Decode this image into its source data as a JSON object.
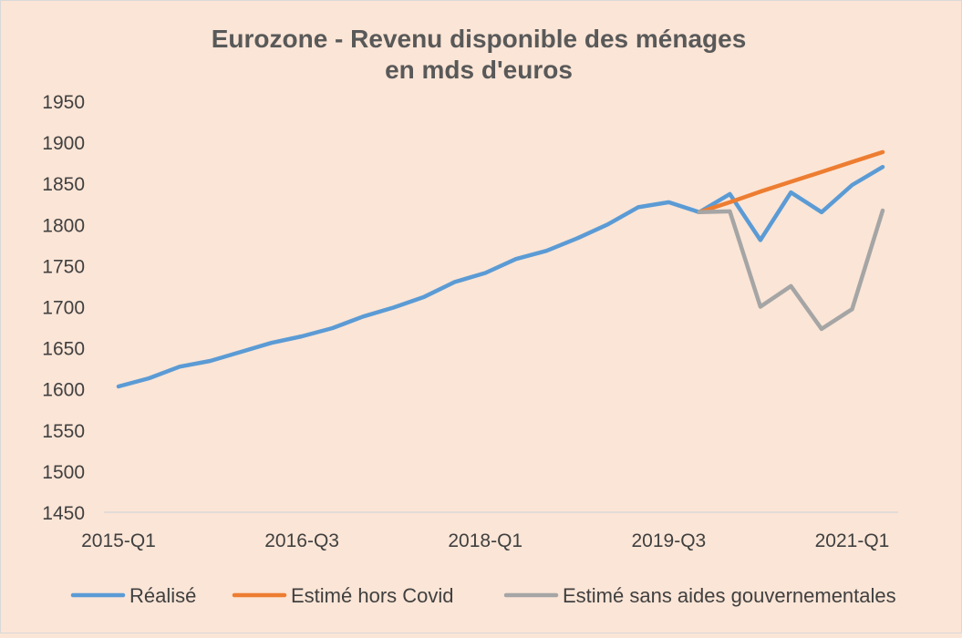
{
  "chart_data": {
    "type": "line",
    "title": [
      "Eurozone - Revenu disponible des ménages",
      "en mds d'euros"
    ],
    "xlabel": "",
    "ylabel": "",
    "ylim": [
      1450,
      1950
    ],
    "yticks": [
      1450,
      1500,
      1550,
      1600,
      1650,
      1700,
      1750,
      1800,
      1850,
      1900,
      1950
    ],
    "x_tick_labels": [
      "2015-Q1",
      "2016-Q3",
      "2018-Q1",
      "2019-Q3",
      "2021-Q1"
    ],
    "x_tick_positions": [
      0,
      6,
      12,
      18,
      24
    ],
    "categories": [
      "2015-Q1",
      "2015-Q2",
      "2015-Q3",
      "2015-Q4",
      "2016-Q1",
      "2016-Q2",
      "2016-Q3",
      "2016-Q4",
      "2017-Q1",
      "2017-Q2",
      "2017-Q3",
      "2017-Q4",
      "2018-Q1",
      "2018-Q2",
      "2018-Q3",
      "2018-Q4",
      "2019-Q1",
      "2019-Q2",
      "2019-Q3",
      "2019-Q4",
      "2020-Q1",
      "2020-Q2",
      "2020-Q3",
      "2020-Q4",
      "2021-Q1",
      "2021-Q2"
    ],
    "grid": false,
    "legend": "bottom",
    "series": [
      {
        "name": "Réalisé",
        "color": "#5b9bd5",
        "values": [
          1603,
          1613,
          1627,
          1634,
          1645,
          1656,
          1664,
          1674,
          1688,
          1699,
          1712,
          1730,
          1741,
          1758,
          1768,
          1783,
          1800,
          1821,
          1827,
          1815,
          1837,
          1781,
          1839,
          1815,
          1848,
          1870
        ]
      },
      {
        "name": "Estimé hors Covid",
        "color": "#ed7d31",
        "values": [
          null,
          null,
          null,
          null,
          null,
          null,
          null,
          null,
          null,
          null,
          null,
          null,
          null,
          null,
          null,
          null,
          null,
          null,
          null,
          1815,
          1827,
          1840,
          1852,
          1864,
          1876,
          1888
        ]
      },
      {
        "name": "Estimé sans aides gouvernementales",
        "color": "#a5a5a5",
        "values": [
          null,
          null,
          null,
          null,
          null,
          null,
          null,
          null,
          null,
          null,
          null,
          null,
          null,
          null,
          null,
          null,
          null,
          null,
          null,
          1815,
          1816,
          1700,
          1725,
          1673,
          1697,
          1817
        ]
      }
    ]
  }
}
